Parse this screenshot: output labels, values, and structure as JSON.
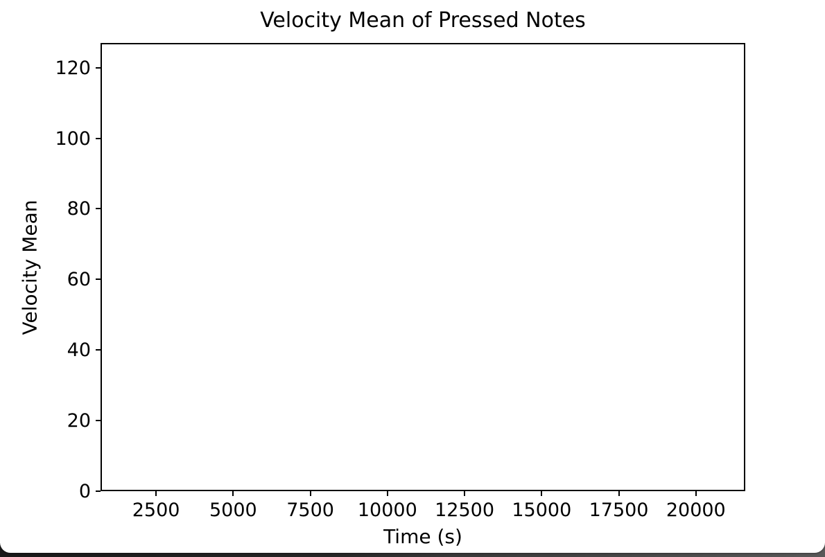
{
  "chart_data": {
    "type": "line",
    "title": "Velocity Mean of Pressed Notes",
    "xlabel": "Time (s)",
    "ylabel": "Velocity Mean",
    "x_ticks": [
      2500,
      5000,
      7500,
      10000,
      12500,
      15000,
      17500,
      20000
    ],
    "y_ticks": [
      0,
      20,
      40,
      60,
      80,
      100,
      120
    ],
    "xlim": [
      700,
      21600
    ],
    "ylim": [
      0,
      127
    ],
    "series": [],
    "grid": false,
    "legend": false,
    "plot_background": "#ffffff",
    "spine_color": "#000000",
    "text_color": "#000000"
  },
  "window": {
    "background": "#ffffff",
    "bottom_bar_gradient_left": "#191919",
    "bottom_bar_gradient_right": "#585858"
  }
}
